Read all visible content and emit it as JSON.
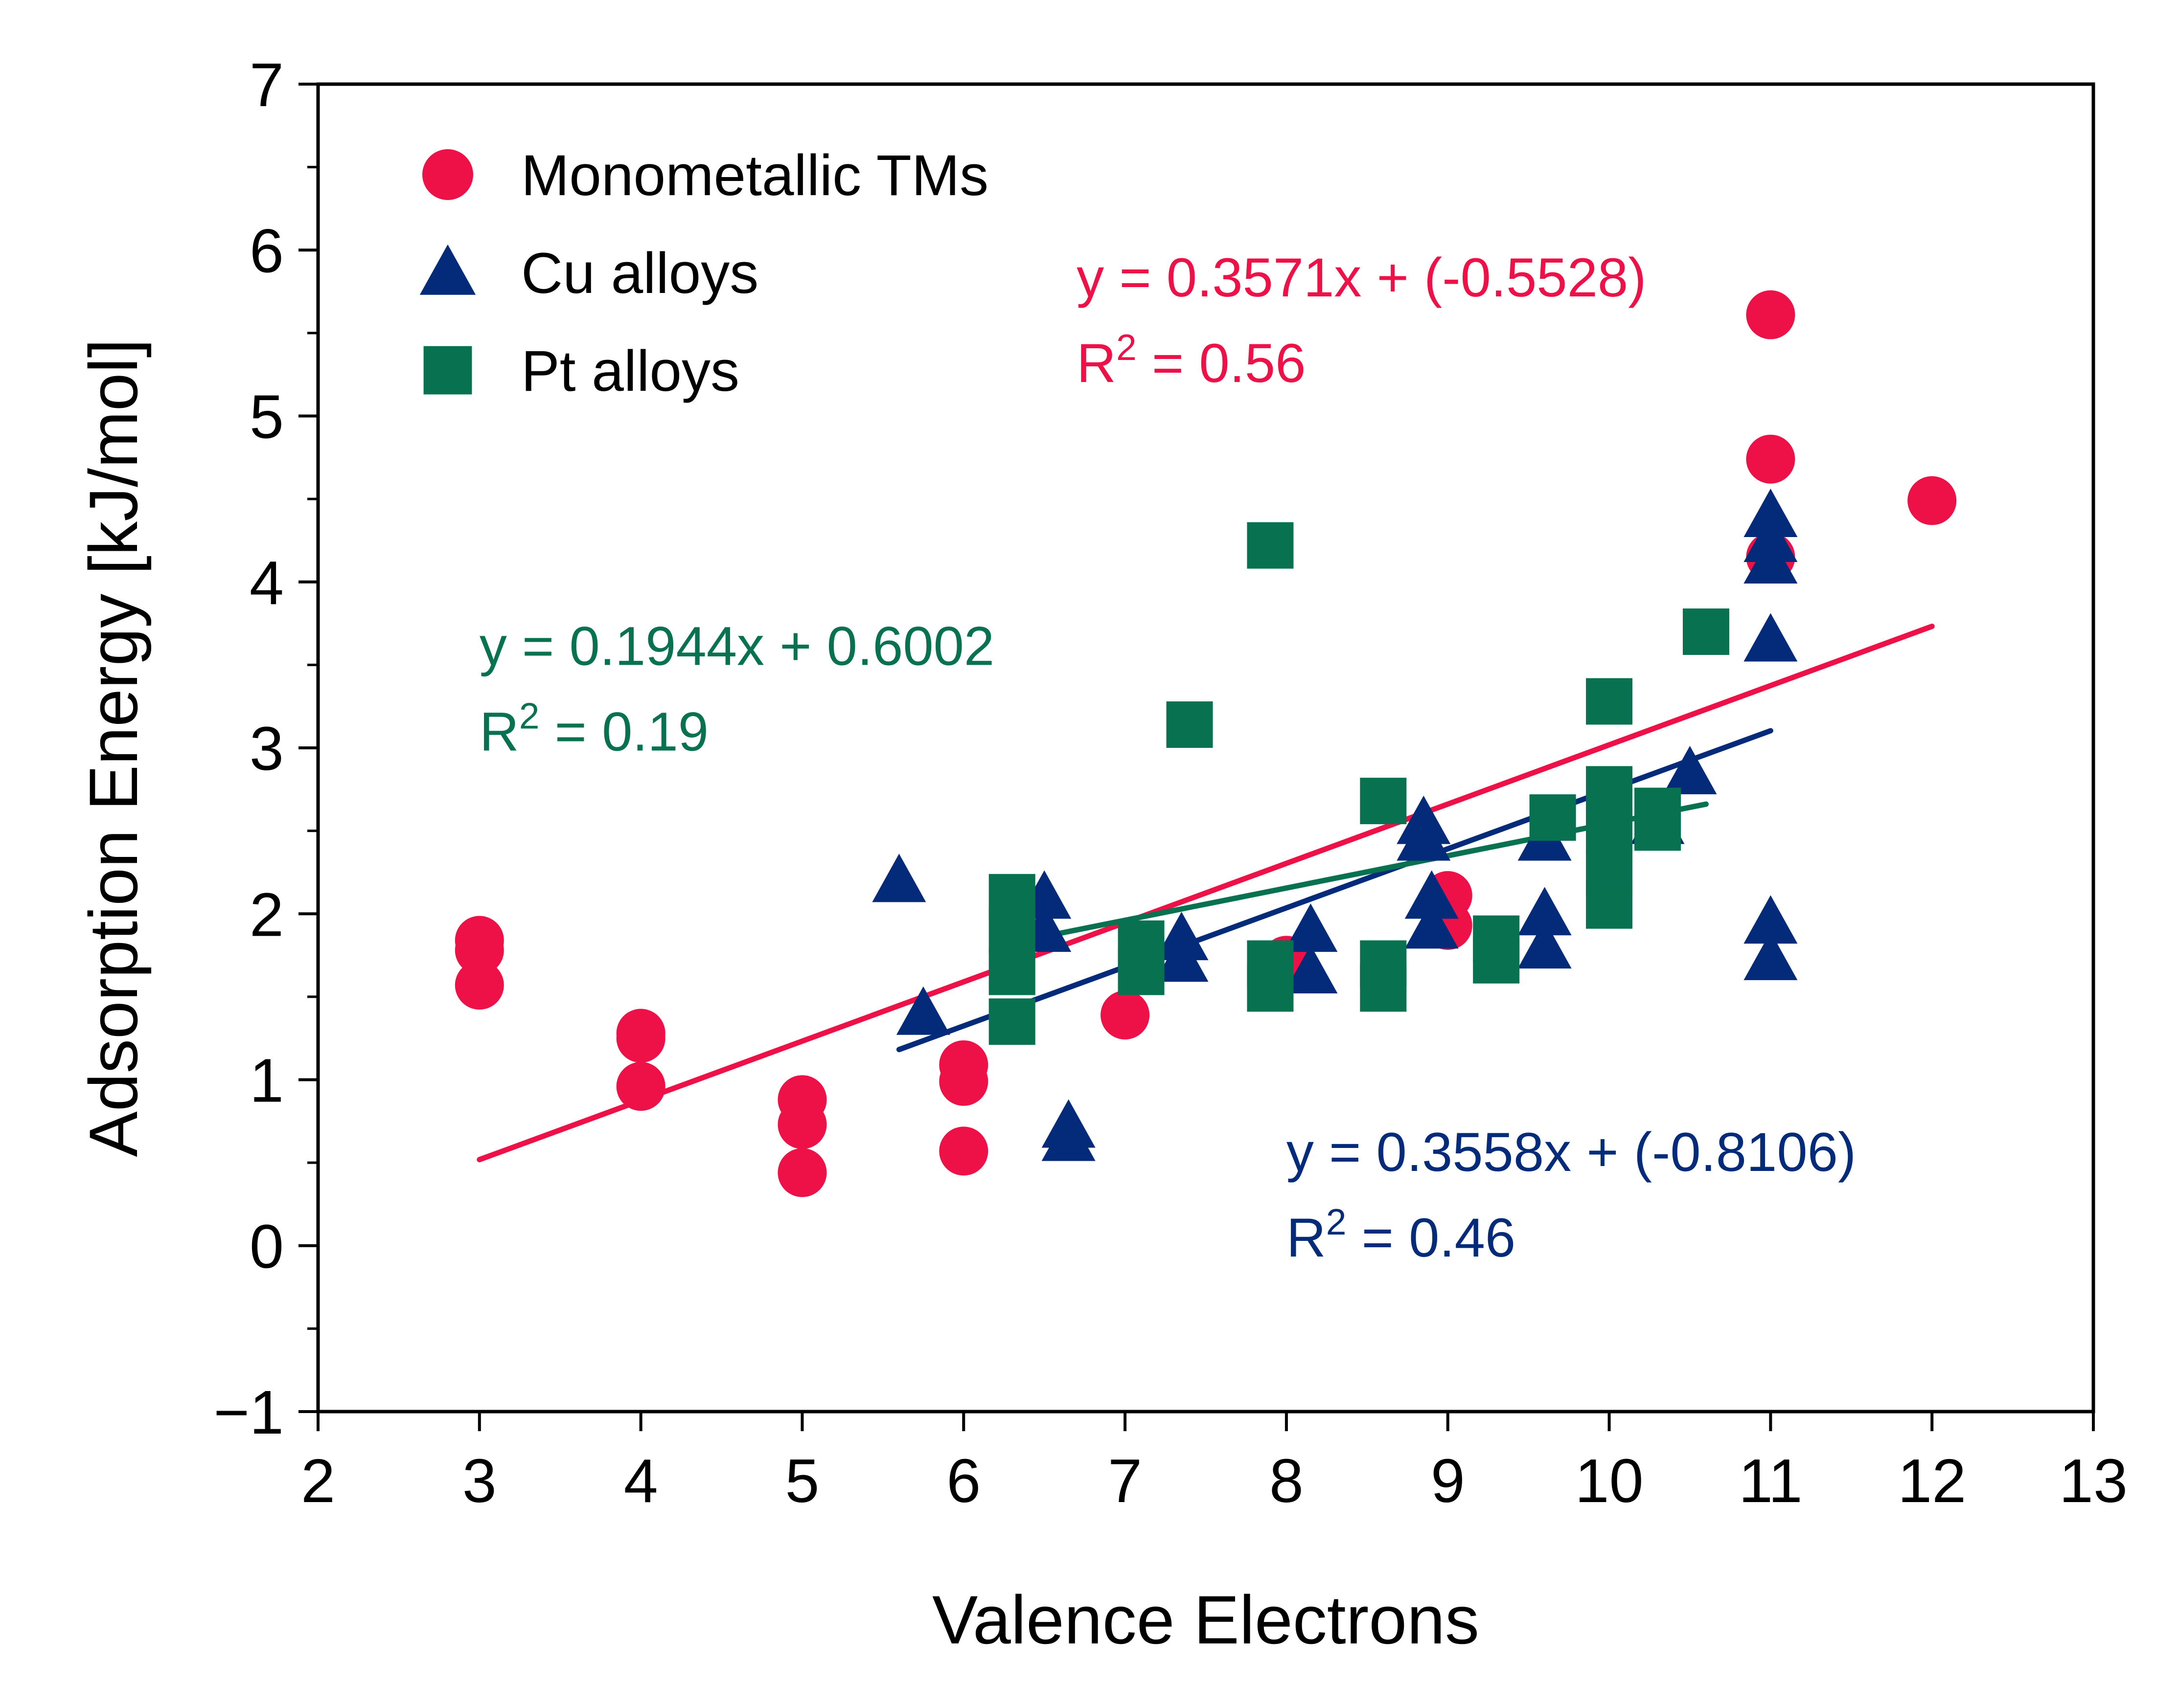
{
  "chart_data": {
    "type": "scatter",
    "xlabel": "Valence Electrons",
    "ylabel": "Adsorption Energy [kJ/mol]",
    "xlim": [
      2,
      13
    ],
    "ylim": [
      -1,
      7
    ],
    "x_ticks": [
      "2",
      "3",
      "4",
      "5",
      "6",
      "7",
      "8",
      "9",
      "10",
      "11",
      "12",
      "13"
    ],
    "y_ticks": [
      "−1",
      "0",
      "1",
      "2",
      "3",
      "4",
      "5",
      "6",
      "7"
    ],
    "x_tick_values": [
      2,
      3,
      4,
      5,
      6,
      7,
      8,
      9,
      10,
      11,
      12,
      13
    ],
    "y_tick_values": [
      -1,
      0,
      1,
      2,
      3,
      4,
      5,
      6,
      7
    ],
    "y_minor_ticks": [
      -0.5,
      0.5,
      1.5,
      2.5,
      3.5,
      4.5,
      5.5,
      6.5
    ],
    "grid": false,
    "legend_position": "top-left",
    "series": [
      {
        "name": "Monometallic TMs",
        "marker": "circle",
        "color": "#ee1148",
        "points": [
          [
            3,
            1.84
          ],
          [
            3,
            1.78
          ],
          [
            3,
            1.57
          ],
          [
            4,
            1.28
          ],
          [
            4,
            1.25
          ],
          [
            4,
            0.96
          ],
          [
            5,
            0.88
          ],
          [
            5,
            0.73
          ],
          [
            5,
            0.44
          ],
          [
            6,
            1.09
          ],
          [
            6,
            0.99
          ],
          [
            6,
            0.57
          ],
          [
            7,
            1.39
          ],
          [
            8,
            1.72
          ],
          [
            9,
            2.11
          ],
          [
            9,
            1.93
          ],
          [
            11,
            5.61
          ],
          [
            11,
            4.74
          ],
          [
            11,
            4.15
          ],
          [
            12,
            4.49
          ]
        ],
        "fit": {
          "x": [
            3,
            12
          ],
          "slope": 0.3571,
          "intercept": -0.5528
        },
        "equation": "y = 0.3571x + (-0.5528)",
        "r2_prefix": "R",
        "r2_value": " = 0.56"
      },
      {
        "name": "Cu alloys",
        "marker": "triangle",
        "color": "#042a7a",
        "points": [
          [
            5.6,
            2.2
          ],
          [
            5.75,
            1.4
          ],
          [
            6.5,
            2.1
          ],
          [
            6.5,
            1.9
          ],
          [
            6.65,
            0.72
          ],
          [
            6.65,
            0.64
          ],
          [
            7.35,
            1.85
          ],
          [
            7.35,
            1.72
          ],
          [
            8.15,
            1.9
          ],
          [
            8.15,
            1.65
          ],
          [
            8.85,
            2.55
          ],
          [
            8.85,
            2.45
          ],
          [
            8.9,
            2.1
          ],
          [
            8.9,
            1.92
          ],
          [
            9.6,
            2.45
          ],
          [
            9.6,
            2.0
          ],
          [
            9.6,
            1.8
          ],
          [
            10.3,
            2.55
          ],
          [
            10.5,
            2.85
          ],
          [
            11,
            4.4
          ],
          [
            11,
            4.25
          ],
          [
            11,
            4.12
          ],
          [
            11,
            3.65
          ],
          [
            11,
            1.95
          ],
          [
            11,
            1.73
          ]
        ],
        "fit": {
          "x": [
            5.6,
            11
          ],
          "slope": 0.3558,
          "intercept": -0.8106
        },
        "equation": "y = 0.3558x + (-0.8106)",
        "r2_prefix": "R",
        "r2_value": " = 0.46"
      },
      {
        "name": "Pt alloys",
        "marker": "square",
        "color": "#077150",
        "points": [
          [
            6.3,
            2.1
          ],
          [
            6.3,
            1.9
          ],
          [
            6.3,
            1.65
          ],
          [
            6.3,
            1.35
          ],
          [
            7.1,
            1.82
          ],
          [
            7.1,
            1.65
          ],
          [
            7.4,
            3.14
          ],
          [
            7.9,
            4.22
          ],
          [
            7.9,
            1.7
          ],
          [
            7.9,
            1.55
          ],
          [
            8.6,
            2.68
          ],
          [
            8.6,
            1.7
          ],
          [
            8.6,
            1.55
          ],
          [
            9.3,
            1.85
          ],
          [
            9.3,
            1.72
          ],
          [
            9.65,
            2.58
          ],
          [
            10,
            3.28
          ],
          [
            10,
            2.75
          ],
          [
            10,
            2.5
          ],
          [
            10,
            2.25
          ],
          [
            10,
            2.05
          ],
          [
            10.3,
            2.62
          ],
          [
            10.3,
            2.52
          ],
          [
            10.6,
            3.7
          ]
        ],
        "fit": {
          "x": [
            6.3,
            10.6
          ],
          "slope": 0.1944,
          "intercept": 0.6002
        },
        "equation": "y = 0.1944x + 0.6002",
        "r2_prefix": "R",
        "r2_value": " = 0.19"
      }
    ],
    "annotations": [
      {
        "series": 0,
        "x": 6.7,
        "y": 5.72
      },
      {
        "series": 2,
        "x": 3.0,
        "y": 3.5
      },
      {
        "series": 1,
        "x": 8.0,
        "y": 0.45
      }
    ]
  }
}
